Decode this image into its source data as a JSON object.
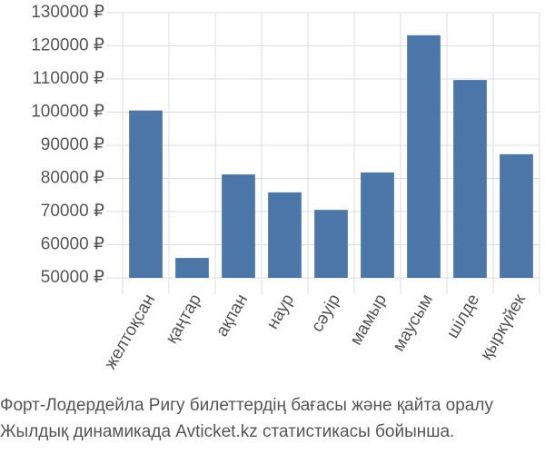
{
  "chart_data": {
    "type": "bar",
    "title": "Форт-Лодердейла Ригу билеттердің бағасы және қайта оралу",
    "subtitle": "Жылдық динамикада Avticket.kz статистикасы бойынша.",
    "categories": [
      "желтоқсан",
      "қаңтар",
      "ақпан",
      "наур",
      "сәуір",
      "мамыр",
      "маусым",
      "шілде",
      "қыркүйек"
    ],
    "values": [
      100500,
      56000,
      81200,
      75800,
      70500,
      81800,
      123200,
      109700,
      87300
    ],
    "color": "#4a76a8",
    "ylim": [
      50000,
      130000
    ],
    "yticks": [
      {
        "value": 50000,
        "label": "50000 ₽"
      },
      {
        "value": 60000,
        "label": "60000 ₽"
      },
      {
        "value": 70000,
        "label": "70000 ₽"
      },
      {
        "value": 80000,
        "label": "80000 ₽"
      },
      {
        "value": 90000,
        "label": "90000 ₽"
      },
      {
        "value": 100000,
        "label": "100000 ₽"
      },
      {
        "value": 110000,
        "label": "110000 ₽"
      },
      {
        "value": 120000,
        "label": "120000 ₽"
      },
      {
        "value": 130000,
        "label": "130000 ₽"
      }
    ],
    "grid": true
  }
}
